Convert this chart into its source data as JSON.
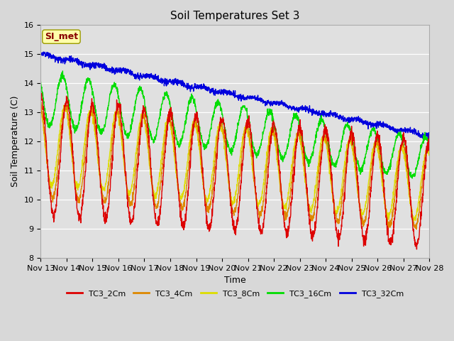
{
  "title": "Soil Temperatures Set 3",
  "xlabel": "Time",
  "ylabel": "Soil Temperature (C)",
  "ylim": [
    8.0,
    16.0
  ],
  "yticks": [
    8.0,
    9.0,
    10.0,
    11.0,
    12.0,
    13.0,
    14.0,
    15.0,
    16.0
  ],
  "xtick_labels": [
    "Nov 13",
    "Nov 14",
    "Nov 15",
    "Nov 16",
    "Nov 17",
    "Nov 18",
    "Nov 19",
    "Nov 20",
    "Nov 21",
    "Nov 22",
    "Nov 23",
    "Nov 24",
    "Nov 25",
    "Nov 26",
    "Nov 27",
    "Nov 28"
  ],
  "series_colors": {
    "TC3_2Cm": "#dd0000",
    "TC3_4Cm": "#dd8800",
    "TC3_8Cm": "#dddd00",
    "TC3_16Cm": "#00dd00",
    "TC3_32Cm": "#0000dd"
  },
  "annotation_text": "SI_met",
  "annotation_color": "#880000",
  "annotation_bg": "#ffffaa",
  "fig_bg": "#d8d8d8",
  "plot_bg": "#e0e0e0",
  "title_fontsize": 11,
  "axis_fontsize": 9,
  "tick_fontsize": 8
}
